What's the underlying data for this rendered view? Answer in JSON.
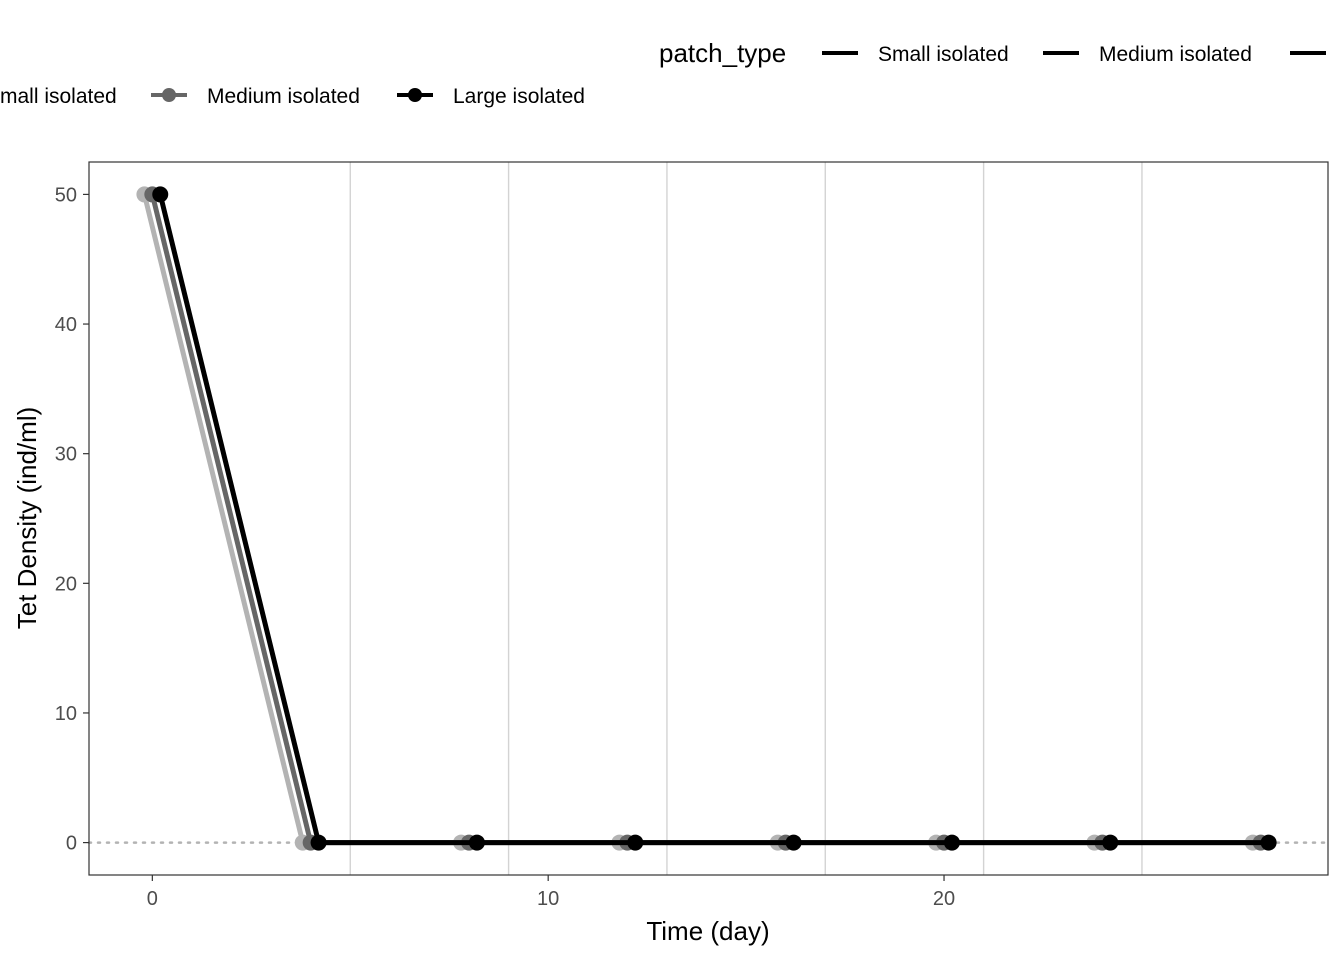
{
  "chart_data": {
    "type": "line",
    "xlabel": "Time (day)",
    "ylabel": "Tet Density (ind/ml)",
    "xlim": [
      -1.6,
      29.7
    ],
    "ylim": [
      -2.5,
      52.5
    ],
    "x_ticks": [
      0,
      10,
      20
    ],
    "y_ticks": [
      0,
      10,
      20,
      30,
      40,
      50
    ],
    "vertical_reference_lines": [
      5,
      9,
      13,
      17,
      21,
      25
    ],
    "horizontal_reference_line": 0,
    "grid": false,
    "legend": {
      "title": "patch_type",
      "placement": "top",
      "row1_labels": [
        "Small isolated",
        "Medium isolated"
      ],
      "row2_labels": [
        "mall isolated",
        "Medium isolated",
        "Large isolated"
      ]
    },
    "series": [
      {
        "name": "Small isolated",
        "color": "#b3b3b3",
        "dodge": -0.2,
        "x": [
          0,
          4,
          8,
          12,
          16,
          20,
          24,
          28
        ],
        "values": [
          50,
          0,
          0,
          0,
          0,
          0,
          0,
          0
        ]
      },
      {
        "name": "Medium isolated",
        "color": "#666666",
        "dodge": 0,
        "x": [
          0,
          4,
          8,
          12,
          16,
          20,
          24,
          28
        ],
        "values": [
          50,
          0,
          0,
          0,
          0,
          0,
          0,
          0
        ]
      },
      {
        "name": "Large isolated",
        "color": "#000000",
        "dodge": 0.2,
        "x": [
          0,
          4,
          8,
          12,
          16,
          20,
          24,
          28
        ],
        "values": [
          50,
          0,
          0,
          0,
          0,
          0,
          0,
          0
        ]
      }
    ]
  }
}
